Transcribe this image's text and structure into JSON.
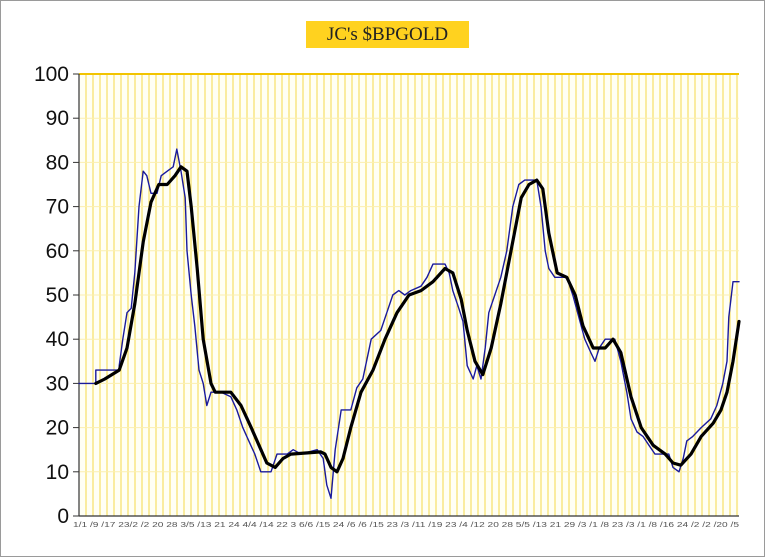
{
  "chart_data": {
    "type": "line",
    "title": "JC's $BPGOLD",
    "xlabel": "",
    "ylabel": "",
    "ylim": [
      0,
      100
    ],
    "yticks": [
      "0",
      "10",
      "20",
      "30",
      "40",
      "50",
      "60",
      "70",
      "80",
      "90",
      "100"
    ],
    "xtick_text": "1/1 /9 /17 23/2 /2 20 28 3/5 /13 21 24 4/4 /14 22 3 6/6 /15 24 /6 /6 /15 23 /3 /11 /19 23 /4 /12 20 28 5/5 /13 21 29 /3 /1 /8 23 /3 /1 /8 /16 24 /2 /2 /20 /5",
    "grid": {
      "vertical": true,
      "horizontal": true,
      "color": "#F5D94A"
    },
    "x_unit": "period index",
    "series": [
      {
        "style": "step",
        "color": "#1A1A9C",
        "points": [
          [
            0,
            30
          ],
          [
            2.8,
            30
          ],
          [
            2.8,
            33
          ],
          [
            6.7,
            33
          ],
          [
            6.7,
            34
          ],
          [
            7.3,
            40
          ],
          [
            8,
            46
          ],
          [
            8.7,
            47
          ],
          [
            9.3,
            55
          ],
          [
            10,
            70
          ],
          [
            10.7,
            78
          ],
          [
            11.3,
            77
          ],
          [
            12,
            73
          ],
          [
            13,
            73
          ],
          [
            13.7,
            77
          ],
          [
            14.7,
            78
          ],
          [
            15.7,
            79
          ],
          [
            16.3,
            83
          ],
          [
            17,
            78
          ],
          [
            17.7,
            72
          ],
          [
            18,
            60
          ],
          [
            18.7,
            50
          ],
          [
            19.3,
            43
          ],
          [
            20,
            33
          ],
          [
            20.7,
            30
          ],
          [
            21.3,
            25
          ],
          [
            22,
            28
          ],
          [
            23.7,
            28
          ],
          [
            25.3,
            27
          ],
          [
            26.3,
            24
          ],
          [
            27.3,
            20
          ],
          [
            28.3,
            17
          ],
          [
            29.3,
            14
          ],
          [
            30.3,
            10
          ],
          [
            32,
            10
          ],
          [
            33,
            14
          ],
          [
            34.7,
            14
          ],
          [
            35.7,
            15
          ],
          [
            37,
            14
          ],
          [
            39.7,
            15
          ],
          [
            40.7,
            13
          ],
          [
            41.3,
            7
          ],
          [
            42,
            4
          ],
          [
            42.7,
            15
          ],
          [
            43.7,
            24
          ],
          [
            45.3,
            24
          ],
          [
            46.3,
            29
          ],
          [
            47.3,
            31
          ],
          [
            48.7,
            40
          ],
          [
            50.3,
            42
          ],
          [
            51.3,
            46
          ],
          [
            52.3,
            50
          ],
          [
            53.3,
            51
          ],
          [
            54.3,
            50
          ],
          [
            55.3,
            51
          ],
          [
            57,
            52
          ],
          [
            58,
            54
          ],
          [
            59,
            57
          ],
          [
            61,
            57
          ],
          [
            61.7,
            55
          ],
          [
            62.3,
            51
          ],
          [
            63.3,
            47
          ],
          [
            64,
            44
          ],
          [
            64.7,
            34
          ],
          [
            65.7,
            31
          ],
          [
            66.3,
            34
          ],
          [
            67,
            31
          ],
          [
            67.7,
            38
          ],
          [
            68.3,
            46
          ],
          [
            69.3,
            50
          ],
          [
            70.3,
            54
          ],
          [
            71.3,
            60
          ],
          [
            72.3,
            70
          ],
          [
            73.3,
            75
          ],
          [
            74.3,
            76
          ],
          [
            76.3,
            76
          ],
          [
            77,
            70
          ],
          [
            77.7,
            60
          ],
          [
            78.3,
            56
          ],
          [
            79.3,
            54
          ],
          [
            81.3,
            54
          ],
          [
            82.3,
            50
          ],
          [
            83.3,
            45
          ],
          [
            84.3,
            40
          ],
          [
            85.3,
            37
          ],
          [
            86,
            35
          ],
          [
            86.7,
            38
          ],
          [
            87.7,
            40
          ],
          [
            89.3,
            40
          ],
          [
            90.3,
            35
          ],
          [
            91.3,
            28
          ],
          [
            92,
            22
          ],
          [
            93,
            19
          ],
          [
            94,
            18
          ],
          [
            95,
            16
          ],
          [
            96,
            14
          ],
          [
            98.3,
            14
          ],
          [
            99,
            11
          ],
          [
            100,
            10
          ],
          [
            100.7,
            13
          ],
          [
            101.3,
            17
          ],
          [
            102.3,
            18
          ],
          [
            103.7,
            20
          ],
          [
            105.3,
            22
          ],
          [
            106.3,
            25
          ],
          [
            107.3,
            30
          ],
          [
            108,
            35
          ],
          [
            108.3,
            45
          ],
          [
            109,
            53
          ],
          [
            110,
            53
          ]
        ]
      },
      {
        "style": "smooth",
        "color": "#000000",
        "points": [
          [
            2.8,
            30
          ],
          [
            4.3,
            31
          ],
          [
            6.7,
            33
          ],
          [
            8,
            38
          ],
          [
            9.3,
            48
          ],
          [
            10.7,
            62
          ],
          [
            12,
            71
          ],
          [
            13.3,
            75
          ],
          [
            14.7,
            75
          ],
          [
            16,
            77
          ],
          [
            17,
            79
          ],
          [
            18,
            78
          ],
          [
            18.7,
            70
          ],
          [
            19.7,
            56
          ],
          [
            20.7,
            40
          ],
          [
            22,
            30
          ],
          [
            22.7,
            28
          ],
          [
            25.3,
            28
          ],
          [
            27,
            25
          ],
          [
            28.7,
            20
          ],
          [
            30,
            16
          ],
          [
            31.3,
            12
          ],
          [
            32.7,
            11
          ],
          [
            34,
            13
          ],
          [
            35.3,
            14
          ],
          [
            40.3,
            14.5
          ],
          [
            41,
            14
          ],
          [
            42,
            11
          ],
          [
            43,
            10
          ],
          [
            44,
            13
          ],
          [
            45.3,
            20
          ],
          [
            47,
            28
          ],
          [
            49,
            33
          ],
          [
            51,
            40
          ],
          [
            53,
            46
          ],
          [
            55,
            50
          ],
          [
            57,
            51
          ],
          [
            59,
            53
          ],
          [
            61,
            56
          ],
          [
            62.3,
            55
          ],
          [
            63.7,
            49
          ],
          [
            64.7,
            42
          ],
          [
            66,
            35
          ],
          [
            67.3,
            32
          ],
          [
            68.7,
            38
          ],
          [
            70.3,
            48
          ],
          [
            72,
            60
          ],
          [
            73.7,
            72
          ],
          [
            75,
            75
          ],
          [
            76.3,
            76
          ],
          [
            77.3,
            74
          ],
          [
            78.3,
            64
          ],
          [
            79.7,
            55
          ],
          [
            81.3,
            54
          ],
          [
            82.7,
            50
          ],
          [
            84,
            43
          ],
          [
            85.7,
            38
          ],
          [
            87.7,
            38
          ],
          [
            89,
            40
          ],
          [
            90.3,
            37
          ],
          [
            92,
            27
          ],
          [
            93.7,
            20
          ],
          [
            95.7,
            16
          ],
          [
            97.7,
            14
          ],
          [
            99,
            12
          ],
          [
            100.3,
            11.5
          ],
          [
            102,
            14
          ],
          [
            103.7,
            18
          ],
          [
            105.7,
            21
          ],
          [
            107,
            24
          ],
          [
            108,
            28
          ],
          [
            109,
            35
          ],
          [
            110,
            44
          ]
        ]
      }
    ]
  }
}
